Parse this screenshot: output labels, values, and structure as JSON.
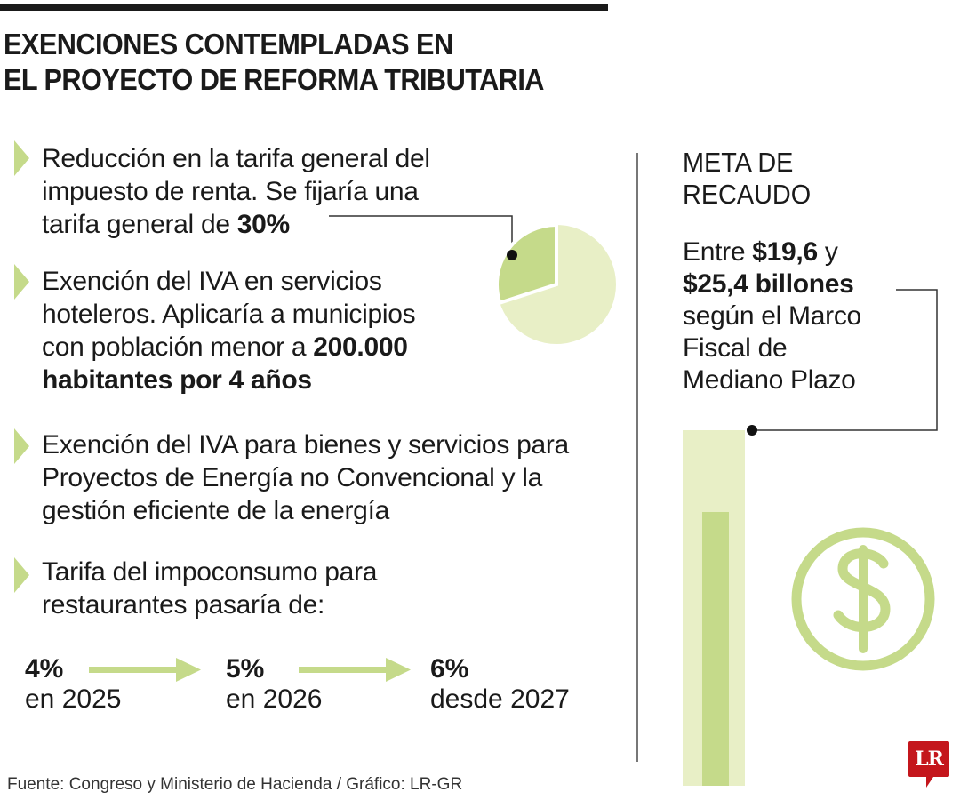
{
  "title": {
    "line1": "EXENCIONES CONTEMPLADAS EN",
    "line2": "EL PROYECTO DE REFORMA TRIBUTARIA"
  },
  "items": [
    {
      "lines": [
        "Reducción en la tarifa general del",
        "impuesto de renta. Se fijaría una"
      ],
      "line3": "tarifa general de ",
      "bold": "30%"
    },
    {
      "lines": [
        "Exención del IVA en servicios",
        "hoteleros. Aplicaría a municipios"
      ],
      "line3": "con población menor a ",
      "bold": "200.000",
      "bold2": "habitantes por 4 años"
    },
    {
      "lines": [
        "Exención del IVA para bienes y servicios para",
        "Proyectos de Energía no Convencional y la",
        "gestión eficiente de la energía"
      ]
    },
    {
      "lines": [
        "Tarifa del impoconsumo para",
        "restaurantes pasaría de:"
      ]
    }
  ],
  "tax_rate_pie": {
    "highlighted_percent": 30
  },
  "timeline": [
    {
      "rate": "4%",
      "period": "en 2025"
    },
    {
      "rate": "5%",
      "period": "en 2026"
    },
    {
      "rate": "6%",
      "period": "desde 2027"
    }
  ],
  "meta": {
    "heading1": "META DE",
    "heading2": "RECAUDO",
    "pre": "Entre ",
    "low": "$19,6",
    "mid": " y",
    "high": "$25,4 billones",
    "rest1": "según el Marco",
    "rest2": "Fiscal de",
    "rest3": "Mediano Plazo",
    "range_bar": {
      "low": 19.6,
      "high": 25.4
    },
    "icon": "dollar-coin-icon"
  },
  "source": "Fuente: Congreso y Ministerio de Hacienda / Gráfico: LR-GR",
  "logo": "LR",
  "colors": {
    "light_green": "#e8efc6",
    "green": "#c5da8a",
    "logo_red": "#c4161c"
  }
}
